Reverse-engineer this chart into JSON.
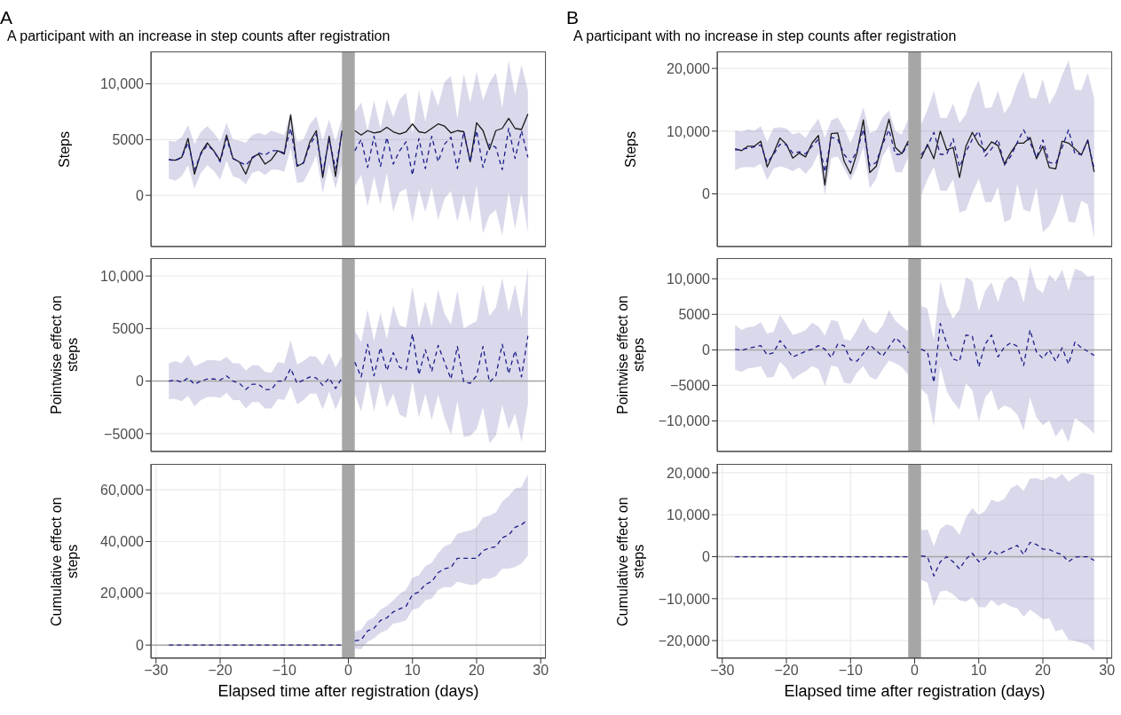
{
  "chart_data": [
    {
      "type": "line",
      "title": "A participant with an increase in step counts after registration",
      "annotations": [
        "A"
      ],
      "ylabel": "Steps",
      "tick_labels": "y",
      "grid": true,
      "x": [
        -28,
        -27,
        -26,
        -25,
        -24,
        -23,
        -22,
        -21,
        -20,
        -19,
        -18,
        -17,
        -16,
        -15,
        -14,
        -13,
        -12,
        -11,
        -10,
        -9,
        -8,
        -7,
        -6,
        -5,
        -4,
        -3,
        -2,
        -1,
        0,
        1,
        2,
        3,
        4,
        5,
        6,
        7,
        8,
        9,
        10,
        11,
        12,
        13,
        14,
        15,
        16,
        17,
        18,
        19,
        20,
        21,
        22,
        23,
        24,
        25,
        26,
        27,
        28
      ],
      "xlim": [
        -30.8,
        30.8
      ],
      "xticks": [
        -30,
        -20,
        -10,
        0,
        10,
        20,
        30
      ],
      "ylim": [
        -4600,
        12900
      ],
      "yticks": [
        {
          "value": 0,
          "label": "0"
        },
        {
          "value": 5000,
          "label": "5000"
        },
        {
          "value": 10000,
          "label": "10,000"
        }
      ],
      "bands": [
        {
          "axis": "x",
          "from": -1,
          "to": 1,
          "color": "#a6a6a6"
        }
      ],
      "series": [
        {
          "color": "#1a1a1a",
          "line_style": "solid",
          "values": [
            3200,
            3150,
            3400,
            5100,
            1900,
            3800,
            4700,
            4000,
            3100,
            5400,
            3300,
            3000,
            1900,
            3400,
            3700,
            2800,
            3200,
            4000,
            3700,
            7200,
            2600,
            2900,
            4800,
            5800,
            1600,
            5300,
            1700,
            5800,
            null,
            5800,
            5400,
            5800,
            5600,
            5700,
            6100,
            5700,
            5500,
            5700,
            6400,
            5700,
            5600,
            6000,
            6400,
            6200,
            5600,
            5800,
            5700,
            3000,
            6500,
            5800,
            4100,
            5800,
            6000,
            6900,
            6000,
            5900,
            7300
          ]
        },
        {
          "color": "#1c1c8a",
          "line_style": "dashed",
          "values": [
            3200,
            3100,
            3400,
            4700,
            2300,
            3700,
            4500,
            4000,
            3000,
            5100,
            3300,
            3000,
            2700,
            3300,
            3800,
            3600,
            4000,
            4000,
            3800,
            6000,
            2700,
            2900,
            4500,
            5500,
            2000,
            5000,
            2400,
            5600,
            null,
            4000,
            5000,
            2500,
            5300,
            2600,
            5200,
            2800,
            4000,
            4800,
            1800,
            5100,
            2400,
            5300,
            3000,
            4600,
            5200,
            2400,
            5700,
            3000,
            5800,
            2500,
            4600,
            4300,
            2300,
            6000,
            3300,
            5800,
            3400
          ],
          "lower": [
            1500,
            1300,
            1700,
            2700,
            600,
            2000,
            2700,
            2200,
            1400,
            3100,
            1700,
            1500,
            1000,
            2000,
            2200,
            1800,
            2300,
            2300,
            2100,
            4200,
            1100,
            1200,
            2300,
            3600,
            200,
            2800,
            600,
            2800,
            null,
            800,
            1800,
            -1000,
            1700,
            -800,
            2000,
            -1500,
            300,
            600,
            -2400,
            500,
            -1500,
            700,
            -2200,
            -300,
            400,
            -2400,
            100,
            -2400,
            900,
            -3400,
            -1800,
            -1300,
            -3600,
            300,
            -3000,
            200,
            -3300
          ],
          "upper": [
            4900,
            4800,
            5200,
            6300,
            4600,
            5700,
            6200,
            5600,
            4800,
            6500,
            5000,
            4900,
            4700,
            5400,
            5600,
            5400,
            5800,
            5600,
            5400,
            7500,
            4800,
            5000,
            6400,
            7100,
            4900,
            6800,
            4800,
            7000,
            null,
            7500,
            8300,
            5800,
            8500,
            6000,
            8600,
            7000,
            8600,
            9200,
            5500,
            9400,
            6600,
            9600,
            8000,
            10200,
            10700,
            6900,
            10900,
            8300,
            11100,
            8500,
            10100,
            11000,
            7800,
            12100,
            9000,
            11700,
            9400
          ]
        }
      ]
    },
    {
      "type": "line",
      "title": "A participant with no increase in step counts after registration",
      "annotations": [
        "B"
      ],
      "ylabel": "Steps",
      "tick_labels": "y",
      "grid": true,
      "x": [
        -28,
        -27,
        -26,
        -25,
        -24,
        -23,
        -22,
        -21,
        -20,
        -19,
        -18,
        -17,
        -16,
        -15,
        -14,
        -13,
        -12,
        -11,
        -10,
        -9,
        -8,
        -7,
        -6,
        -5,
        -4,
        -3,
        -2,
        -1,
        0,
        1,
        2,
        3,
        4,
        5,
        6,
        7,
        8,
        9,
        10,
        11,
        12,
        13,
        14,
        15,
        16,
        17,
        18,
        19,
        20,
        21,
        22,
        23,
        24,
        25,
        26,
        27,
        28
      ],
      "xlim": [
        -30.8,
        30.8
      ],
      "xticks": [
        -30,
        -20,
        -10,
        0,
        10,
        20,
        30
      ],
      "ylim": [
        -8400,
        22700
      ],
      "yticks": [
        {
          "value": 0,
          "label": "0"
        },
        {
          "value": 10000,
          "label": "10,000"
        },
        {
          "value": 20000,
          "label": "20,000"
        }
      ],
      "bands": [
        {
          "axis": "x",
          "from": -1,
          "to": 1,
          "color": "#a6a6a6"
        }
      ],
      "series": [
        {
          "color": "#1a1a1a",
          "line_style": "solid",
          "values": [
            7200,
            6900,
            7600,
            7600,
            8400,
            4300,
            6500,
            8900,
            7900,
            5700,
            6500,
            5900,
            8100,
            9300,
            1400,
            9600,
            9700,
            5200,
            3200,
            6500,
            11800,
            3400,
            4400,
            8100,
            11900,
            7400,
            6400,
            8400,
            null,
            5600,
            7900,
            5600,
            10000,
            7000,
            7400,
            2600,
            7600,
            9800,
            7900,
            6900,
            8300,
            7700,
            4800,
            6600,
            8100,
            8100,
            9000,
            5600,
            7600,
            4200,
            4000,
            8400,
            8100,
            7200,
            6200,
            8600,
            3500
          ]
        },
        {
          "color": "#1c1c8a",
          "line_style": "dashed",
          "values": [
            7000,
            7100,
            7300,
            7500,
            7800,
            5000,
            6300,
            7900,
            7800,
            6500,
            6700,
            6400,
            7600,
            8700,
            3500,
            9000,
            8700,
            6300,
            5000,
            6800,
            10300,
            4500,
            5000,
            7900,
            10200,
            6300,
            6300,
            8000,
            null,
            6200,
            7600,
            9800,
            6300,
            6300,
            8800,
            4300,
            6700,
            8700,
            10000,
            6000,
            7200,
            8700,
            4600,
            6000,
            8200,
            10200,
            8200,
            5800,
            8600,
            5000,
            4800,
            7400,
            10200,
            6400,
            6300,
            8400,
            4000
          ],
          "lower": [
            3800,
            4200,
            4300,
            4200,
            4800,
            2200,
            4000,
            4400,
            4100,
            3600,
            4200,
            3200,
            4400,
            6500,
            -200,
            5700,
            6000,
            4000,
            2100,
            4200,
            7400,
            900,
            2400,
            6000,
            7600,
            3500,
            3400,
            5800,
            null,
            -300,
            2300,
            4300,
            500,
            500,
            2300,
            -3000,
            -2600,
            200,
            2400,
            -1300,
            -1300,
            1100,
            -4500,
            -4000,
            1600,
            -2500,
            -2900,
            1000,
            -6100,
            -5100,
            -3000,
            100,
            -4400,
            -4600,
            -1100,
            -1700,
            -7000
          ],
          "upper": [
            10100,
            9900,
            10300,
            10100,
            10800,
            8300,
            10500,
            10600,
            10400,
            9500,
            9800,
            8900,
            10600,
            12000,
            8900,
            11700,
            12200,
            10400,
            8100,
            10600,
            13800,
            9700,
            10100,
            12200,
            13300,
            10000,
            9500,
            11900,
            null,
            11000,
            13400,
            16400,
            12100,
            12100,
            14400,
            11300,
            12700,
            16000,
            18100,
            13700,
            13800,
            16400,
            12800,
            14400,
            17400,
            19500,
            15300,
            15200,
            18300,
            14300,
            16100,
            18900,
            21300,
            16600,
            16500,
            19300,
            15200
          ]
        }
      ]
    },
    {
      "type": "line",
      "ylabel": "Pointwise effect on steps",
      "tick_labels": "y",
      "grid": true,
      "x": [
        -28,
        -27,
        -26,
        -25,
        -24,
        -23,
        -22,
        -21,
        -20,
        -19,
        -18,
        -17,
        -16,
        -15,
        -14,
        -13,
        -12,
        -11,
        -10,
        -9,
        -8,
        -7,
        -6,
        -5,
        -4,
        -3,
        -2,
        -1,
        0,
        1,
        2,
        3,
        4,
        5,
        6,
        7,
        8,
        9,
        10,
        11,
        12,
        13,
        14,
        15,
        16,
        17,
        18,
        19,
        20,
        21,
        22,
        23,
        24,
        25,
        26,
        27,
        28
      ],
      "xlim": [
        -30.8,
        30.8
      ],
      "xticks": [
        -30,
        -20,
        -10,
        0,
        10,
        20,
        30
      ],
      "ylim": [
        -6700,
        11700
      ],
      "yticks": [
        {
          "value": -5000,
          "label": "−5000"
        },
        {
          "value": 0,
          "label": "0"
        },
        {
          "value": 5000,
          "label": "5000"
        },
        {
          "value": 10000,
          "label": "10,000"
        }
      ],
      "bands": [
        {
          "axis": "x",
          "from": -1,
          "to": 1,
          "color": "#a6a6a6"
        }
      ],
      "ref_lines": [
        {
          "axis": "y",
          "value": 0,
          "color": "#a8a8a8"
        }
      ],
      "series": [
        {
          "color": "#1c1c8a",
          "line_style": "dashed",
          "values": [
            0,
            100,
            -100,
            300,
            -300,
            0,
            200,
            200,
            100,
            500,
            0,
            -200,
            -800,
            -300,
            -300,
            -800,
            -800,
            0,
            0,
            1200,
            -200,
            100,
            400,
            300,
            -400,
            300,
            -700,
            300,
            null,
            1800,
            400,
            3500,
            500,
            3200,
            1000,
            2700,
            1300,
            1100,
            4500,
            600,
            3000,
            900,
            3400,
            1800,
            200,
            3300,
            -100,
            -200,
            500,
            3300,
            -100,
            500,
            3500,
            700,
            2900,
            400,
            4300
          ],
          "lower": [
            -1700,
            -1700,
            -1900,
            -1400,
            -2400,
            -1800,
            -1500,
            -1500,
            -1600,
            -1100,
            -1800,
            -1800,
            -2600,
            -2000,
            -2000,
            -2600,
            -2600,
            -1700,
            -1800,
            -500,
            -2200,
            -1800,
            -1200,
            -1200,
            -2700,
            -1000,
            -2700,
            -1300,
            null,
            -1200,
            -2900,
            200,
            -2900,
            -100,
            -2500,
            -1200,
            -3200,
            -3500,
            0,
            -3500,
            -1200,
            -3700,
            -1300,
            -3500,
            -5100,
            -1900,
            -5300,
            -5200,
            -4600,
            -2500,
            -5900,
            -5200,
            -2300,
            -4600,
            -3100,
            -5800,
            -2200
          ],
          "upper": [
            1700,
            1900,
            1700,
            2500,
            1400,
            1700,
            2000,
            2000,
            1900,
            2300,
            1700,
            1700,
            1000,
            1500,
            1500,
            900,
            800,
            1800,
            1700,
            3900,
            1600,
            1900,
            2400,
            2300,
            1500,
            2700,
            1300,
            2400,
            null,
            4800,
            3700,
            6800,
            3800,
            6500,
            4000,
            7200,
            5300,
            5100,
            9000,
            5100,
            7600,
            5200,
            8700,
            6400,
            5400,
            8600,
            5000,
            5400,
            5700,
            9200,
            6200,
            7000,
            9800,
            6600,
            9200,
            6000,
            10800
          ]
        }
      ]
    },
    {
      "type": "line",
      "ylabel": "Pointwise effect on steps",
      "tick_labels": "y",
      "grid": true,
      "x": [
        -28,
        -27,
        -26,
        -25,
        -24,
        -23,
        -22,
        -21,
        -20,
        -19,
        -18,
        -17,
        -16,
        -15,
        -14,
        -13,
        -12,
        -11,
        -10,
        -9,
        -8,
        -7,
        -6,
        -5,
        -4,
        -3,
        -2,
        -1,
        0,
        1,
        2,
        3,
        4,
        5,
        6,
        7,
        8,
        9,
        10,
        11,
        12,
        13,
        14,
        15,
        16,
        17,
        18,
        19,
        20,
        21,
        22,
        23,
        24,
        25,
        26,
        27,
        28
      ],
      "xlim": [
        -30.8,
        30.8
      ],
      "xticks": [
        -30,
        -20,
        -10,
        0,
        10,
        20,
        30
      ],
      "ylim": [
        -14300,
        12900
      ],
      "yticks": [
        {
          "value": -10000,
          "label": "−10,000"
        },
        {
          "value": -5000,
          "label": "−5000"
        },
        {
          "value": 0,
          "label": "0"
        },
        {
          "value": 5000,
          "label": "5000"
        },
        {
          "value": 10000,
          "label": "10,000"
        }
      ],
      "bands": [
        {
          "axis": "x",
          "from": -1,
          "to": 1,
          "color": "#a6a6a6"
        }
      ],
      "ref_lines": [
        {
          "axis": "y",
          "value": 0,
          "color": "#a8a8a8"
        }
      ],
      "series": [
        {
          "color": "#1c1c8a",
          "line_style": "dashed",
          "values": [
            100,
            -100,
            200,
            400,
            600,
            -700,
            -400,
            1300,
            200,
            -1000,
            -600,
            -200,
            100,
            600,
            100,
            -1100,
            800,
            600,
            -1400,
            -1600,
            -500,
            700,
            -100,
            -900,
            400,
            1700,
            900,
            -400,
            null,
            100,
            -300,
            -4600,
            3700,
            900,
            -1300,
            -1600,
            2100,
            1900,
            -2400,
            800,
            2100,
            -1000,
            400,
            1000,
            500,
            -2200,
            2800,
            -300,
            -1200,
            0,
            -1600,
            300,
            -2000,
            1100,
            300,
            -200,
            -800
          ],
          "lower": [
            -2800,
            -3100,
            -2600,
            -2500,
            -2300,
            -3900,
            -3800,
            -1700,
            -2600,
            -4200,
            -3500,
            -3000,
            -2300,
            -2700,
            -5100,
            -2200,
            -2400,
            -4600,
            -4800,
            -3200,
            -2300,
            -3800,
            -4200,
            -2800,
            -1500,
            -1900,
            -2400,
            -3500,
            null,
            -5500,
            -6300,
            -10700,
            -2300,
            -5800,
            -7300,
            -8400,
            -4700,
            -5700,
            -10100,
            -6700,
            -5600,
            -8500,
            -7800,
            -8200,
            -9100,
            -11300,
            -6700,
            -9500,
            -10600,
            -9900,
            -12200,
            -11000,
            -13000,
            -9600,
            -10200,
            -10900,
            -11800
          ],
          "upper": [
            3500,
            2800,
            3200,
            3300,
            3900,
            2300,
            2500,
            4900,
            3500,
            2100,
            2400,
            2800,
            3800,
            3300,
            2000,
            4200,
            4000,
            1500,
            1300,
            2800,
            4500,
            2800,
            2300,
            3400,
            5600,
            4100,
            3300,
            2600,
            null,
            6200,
            5800,
            1400,
            9600,
            6300,
            4400,
            5700,
            10200,
            9700,
            5400,
            8300,
            9500,
            6700,
            9600,
            10400,
            9700,
            6600,
            11700,
            8700,
            8000,
            10600,
            9600,
            11300,
            8300,
            11400,
            11100,
            10300,
            10500
          ]
        }
      ]
    },
    {
      "type": "line",
      "ylabel": "Cumulative effect on steps",
      "xlabel": "Elapsed time after registration (days)",
      "grid": true,
      "x": [
        -28,
        -27,
        -26,
        -25,
        -24,
        -23,
        -22,
        -21,
        -20,
        -19,
        -18,
        -17,
        -16,
        -15,
        -14,
        -13,
        -12,
        -11,
        -10,
        -9,
        -8,
        -7,
        -6,
        -5,
        -4,
        -3,
        -2,
        -1,
        0,
        1,
        2,
        3,
        4,
        5,
        6,
        7,
        8,
        9,
        10,
        11,
        12,
        13,
        14,
        15,
        16,
        17,
        18,
        19,
        20,
        21,
        22,
        23,
        24,
        25,
        26,
        27,
        28
      ],
      "xlim": [
        -30.8,
        30.8
      ],
      "xticks": [
        {
          "value": -30,
          "label": "−30"
        },
        {
          "value": -20,
          "label": "−20"
        },
        {
          "value": -10,
          "label": "−10"
        },
        0,
        10,
        20,
        30
      ],
      "ylim": [
        -5100,
        70000
      ],
      "yticks": [
        {
          "value": 0,
          "label": "0"
        },
        {
          "value": 20000,
          "label": "20,000"
        },
        {
          "value": 40000,
          "label": "40,000"
        },
        {
          "value": 60000,
          "label": "60,000"
        }
      ],
      "bands": [
        {
          "axis": "x",
          "from": -1,
          "to": 1,
          "color": "#a6a6a6"
        }
      ],
      "ref_lines": [
        {
          "axis": "y",
          "value": 0,
          "color": "#a8a8a8"
        }
      ],
      "series": [
        {
          "color": "#1c1c8a",
          "line_style": "dashed",
          "values": [
            0,
            0,
            0,
            0,
            0,
            0,
            0,
            0,
            0,
            0,
            0,
            0,
            0,
            0,
            0,
            0,
            0,
            0,
            0,
            0,
            0,
            0,
            0,
            0,
            0,
            0,
            0,
            0,
            null,
            1600,
            2000,
            5500,
            6500,
            9500,
            10500,
            12800,
            14000,
            15000,
            19500,
            20500,
            23500,
            24500,
            28000,
            29500,
            30000,
            33500,
            33500,
            33500,
            33500,
            36500,
            37500,
            38000,
            41500,
            42500,
            45500,
            46500,
            48500
          ],
          "lower": [
            null,
            null,
            null,
            null,
            null,
            null,
            null,
            null,
            null,
            null,
            null,
            null,
            null,
            null,
            null,
            null,
            null,
            null,
            null,
            null,
            null,
            null,
            null,
            null,
            null,
            null,
            null,
            null,
            null,
            -1400,
            -1600,
            1300,
            2600,
            4800,
            5800,
            8300,
            8800,
            9600,
            13700,
            14400,
            17300,
            18000,
            21300,
            22400,
            22300,
            24500,
            23900,
            23200,
            23400,
            25800,
            25600,
            26500,
            29500,
            29500,
            30100,
            31500,
            34500
          ],
          "upper": [
            null,
            null,
            null,
            null,
            null,
            null,
            null,
            null,
            null,
            null,
            null,
            null,
            null,
            null,
            null,
            null,
            null,
            null,
            null,
            null,
            null,
            null,
            null,
            null,
            null,
            null,
            null,
            null,
            null,
            5200,
            6000,
            9400,
            10700,
            13700,
            15100,
            17300,
            19800,
            21400,
            26000,
            27000,
            30500,
            31800,
            35500,
            38200,
            39200,
            43000,
            43800,
            44300,
            45500,
            49300,
            50000,
            51200,
            55500,
            57600,
            60500,
            61000,
            66000
          ]
        }
      ]
    },
    {
      "type": "line",
      "ylabel": "Cumulative effect on steps",
      "xlabel": "Elapsed time after registration (days)",
      "grid": true,
      "x": [
        -28,
        -27,
        -26,
        -25,
        -24,
        -23,
        -22,
        -21,
        -20,
        -19,
        -18,
        -17,
        -16,
        -15,
        -14,
        -13,
        -12,
        -11,
        -10,
        -9,
        -8,
        -7,
        -6,
        -5,
        -4,
        -3,
        -2,
        -1,
        0,
        1,
        2,
        3,
        4,
        5,
        6,
        7,
        8,
        9,
        10,
        11,
        12,
        13,
        14,
        15,
        16,
        17,
        18,
        19,
        20,
        21,
        22,
        23,
        24,
        25,
        26,
        27,
        28
      ],
      "xlim": [
        -30.8,
        30.8
      ],
      "xticks": [
        {
          "value": -30,
          "label": "−30"
        },
        {
          "value": -20,
          "label": "−20"
        },
        {
          "value": -10,
          "label": "−10"
        },
        0,
        10,
        20,
        30
      ],
      "ylim": [
        -24200,
        22100
      ],
      "yticks": [
        {
          "value": -20000,
          "label": "−20,000"
        },
        {
          "value": -10000,
          "label": "−10,000"
        },
        {
          "value": 0,
          "label": "0"
        },
        {
          "value": 10000,
          "label": "10,000"
        },
        {
          "value": 20000,
          "label": "20,000"
        }
      ],
      "bands": [
        {
          "axis": "x",
          "from": -1,
          "to": 1,
          "color": "#a6a6a6"
        }
      ],
      "ref_lines": [
        {
          "axis": "y",
          "value": 0,
          "color": "#a8a8a8"
        }
      ],
      "series": [
        {
          "color": "#1c1c8a",
          "line_style": "dashed",
          "values": [
            0,
            0,
            0,
            0,
            0,
            0,
            0,
            0,
            0,
            0,
            0,
            0,
            0,
            0,
            0,
            0,
            0,
            0,
            0,
            0,
            0,
            0,
            0,
            0,
            0,
            0,
            0,
            0,
            null,
            200,
            0,
            -4600,
            -1200,
            0,
            -1200,
            -2900,
            -600,
            800,
            -1200,
            -500,
            1500,
            500,
            1300,
            2000,
            2700,
            500,
            3400,
            2900,
            1800,
            1700,
            1000,
            500,
            -1200,
            -100,
            0,
            0,
            -900
          ],
          "lower": [
            null,
            null,
            null,
            null,
            null,
            null,
            null,
            null,
            null,
            null,
            null,
            null,
            null,
            null,
            null,
            null,
            null,
            null,
            null,
            null,
            null,
            null,
            null,
            null,
            null,
            null,
            null,
            null,
            null,
            -5500,
            -6200,
            -11800,
            -8300,
            -8100,
            -9000,
            -10400,
            -10800,
            -9600,
            -12000,
            -12100,
            -10300,
            -11700,
            -11000,
            -11900,
            -12300,
            -14300,
            -12600,
            -13700,
            -14900,
            -14700,
            -17800,
            -17300,
            -19800,
            -20100,
            -20500,
            -21000,
            -22500
          ],
          "upper": [
            null,
            null,
            null,
            null,
            null,
            null,
            null,
            null,
            null,
            null,
            null,
            null,
            null,
            null,
            null,
            null,
            null,
            null,
            null,
            null,
            null,
            null,
            null,
            null,
            null,
            null,
            null,
            null,
            null,
            6300,
            6500,
            2500,
            6600,
            7700,
            7200,
            5200,
            9300,
            11600,
            9900,
            11000,
            13600,
            13000,
            13800,
            16300,
            17200,
            15700,
            18600,
            18700,
            18200,
            19100,
            18500,
            19700,
            17900,
            19000,
            19900,
            19800,
            19400
          ]
        }
      ]
    }
  ]
}
